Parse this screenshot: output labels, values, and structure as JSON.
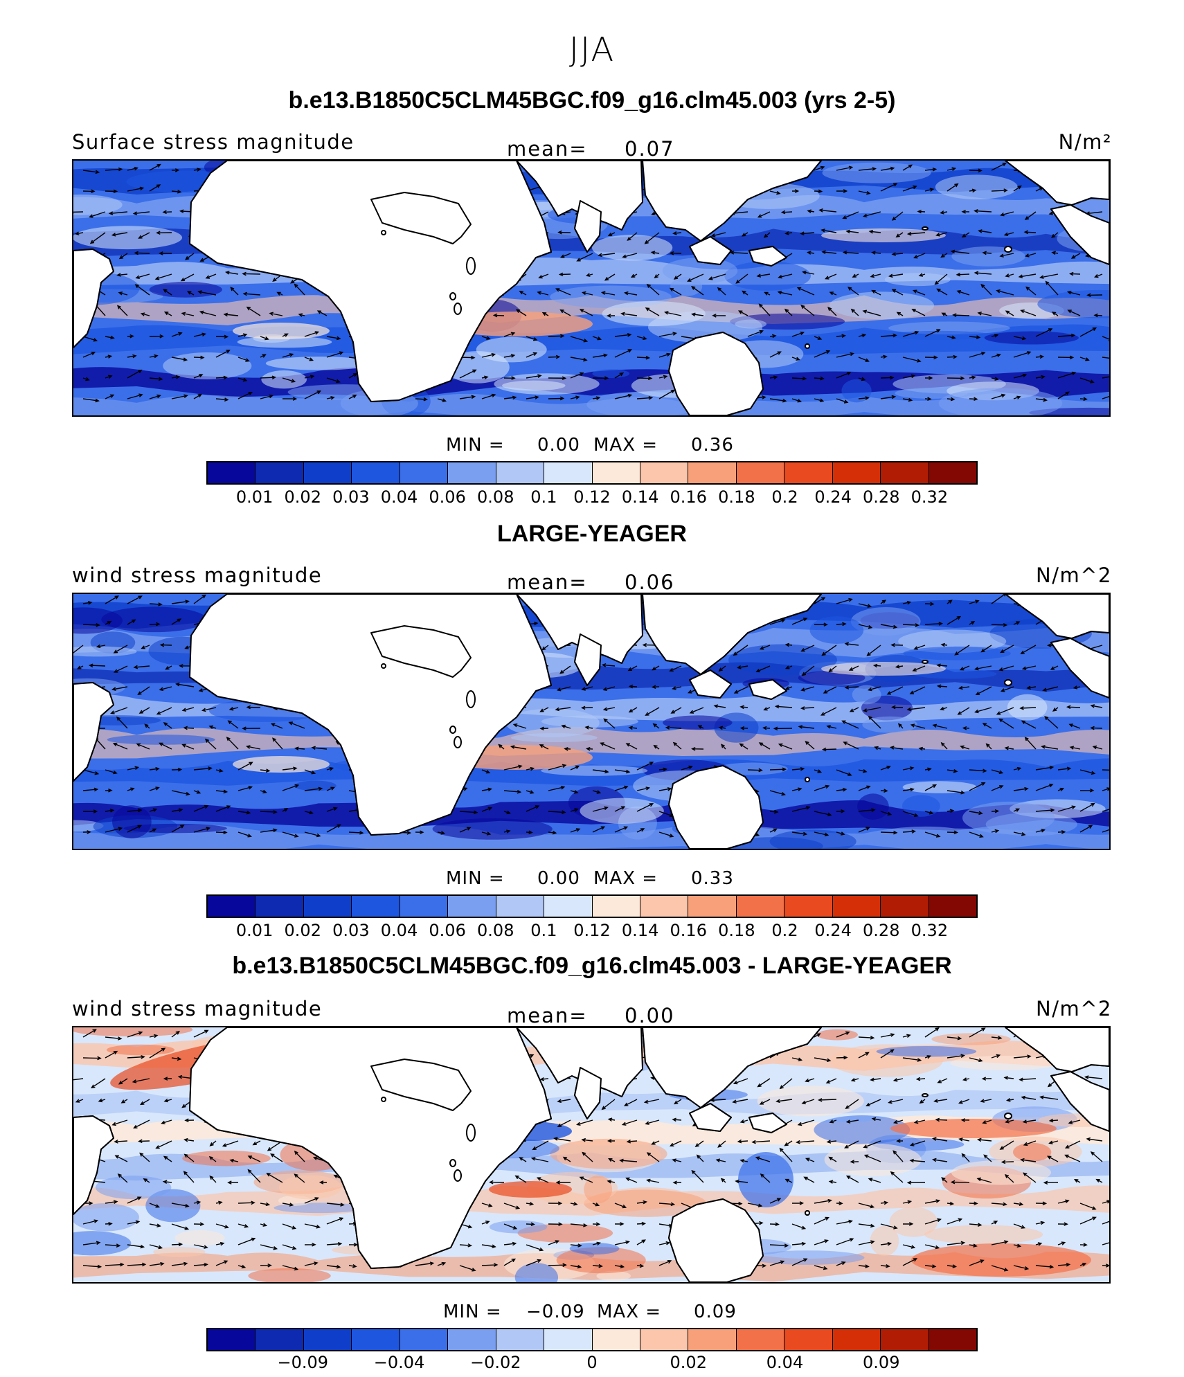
{
  "figure": {
    "season": "JJA"
  },
  "colorbar_colors": [
    "#08079b",
    "#0d2ab1",
    "#0f3fca",
    "#1e56e0",
    "#3b6fe9",
    "#7a9ff0",
    "#b1c8f6",
    "#d8e7fb",
    "#fde9da",
    "#fbc6ac",
    "#f7a07a",
    "#f37148",
    "#ea4a20",
    "#d42f07",
    "#b01c04",
    "#830803"
  ],
  "panels": [
    {
      "title": "b.e13.B1850C5CLM45BGC.f09_g16.clm45.003 (yrs 2-5)",
      "variable": "Surface stress magnitude",
      "mean_label": "mean=",
      "mean_value": "0.07",
      "units": "N/m²",
      "min_label": "MIN =",
      "min_value": "0.00",
      "max_label": "MAX =",
      "max_value": "0.36",
      "colorbar_ticks": [
        "0.01",
        "0.02",
        "0.03",
        "0.04",
        "0.06",
        "0.08",
        "0.1",
        "0.12",
        "0.14",
        "0.16",
        "0.18",
        "0.2",
        "0.24",
        "0.28",
        "0.32"
      ]
    },
    {
      "title": "LARGE-YEAGER",
      "variable": "wind stress magnitude",
      "mean_label": "mean=",
      "mean_value": "0.06",
      "units": "N/m^2",
      "min_label": "MIN =",
      "min_value": "0.00",
      "max_label": "MAX =",
      "max_value": "0.33",
      "colorbar_ticks": [
        "0.01",
        "0.02",
        "0.03",
        "0.04",
        "0.06",
        "0.08",
        "0.1",
        "0.12",
        "0.14",
        "0.16",
        "0.18",
        "0.2",
        "0.24",
        "0.28",
        "0.32"
      ]
    },
    {
      "title": "b.e13.B1850C5CLM45BGC.f09_g16.clm45.003 - LARGE-YEAGER",
      "variable": "wind stress magnitude",
      "mean_label": "mean=",
      "mean_value": "0.00",
      "units": "N/m^2",
      "min_label": "MIN =",
      "min_value": "−0.09",
      "max_label": "MAX =",
      "max_value": "0.09",
      "colorbar_ticks": [
        "−0.09",
        "−0.04",
        "−0.02",
        "0",
        "0.02",
        "0.04",
        "0.09"
      ]
    }
  ]
}
